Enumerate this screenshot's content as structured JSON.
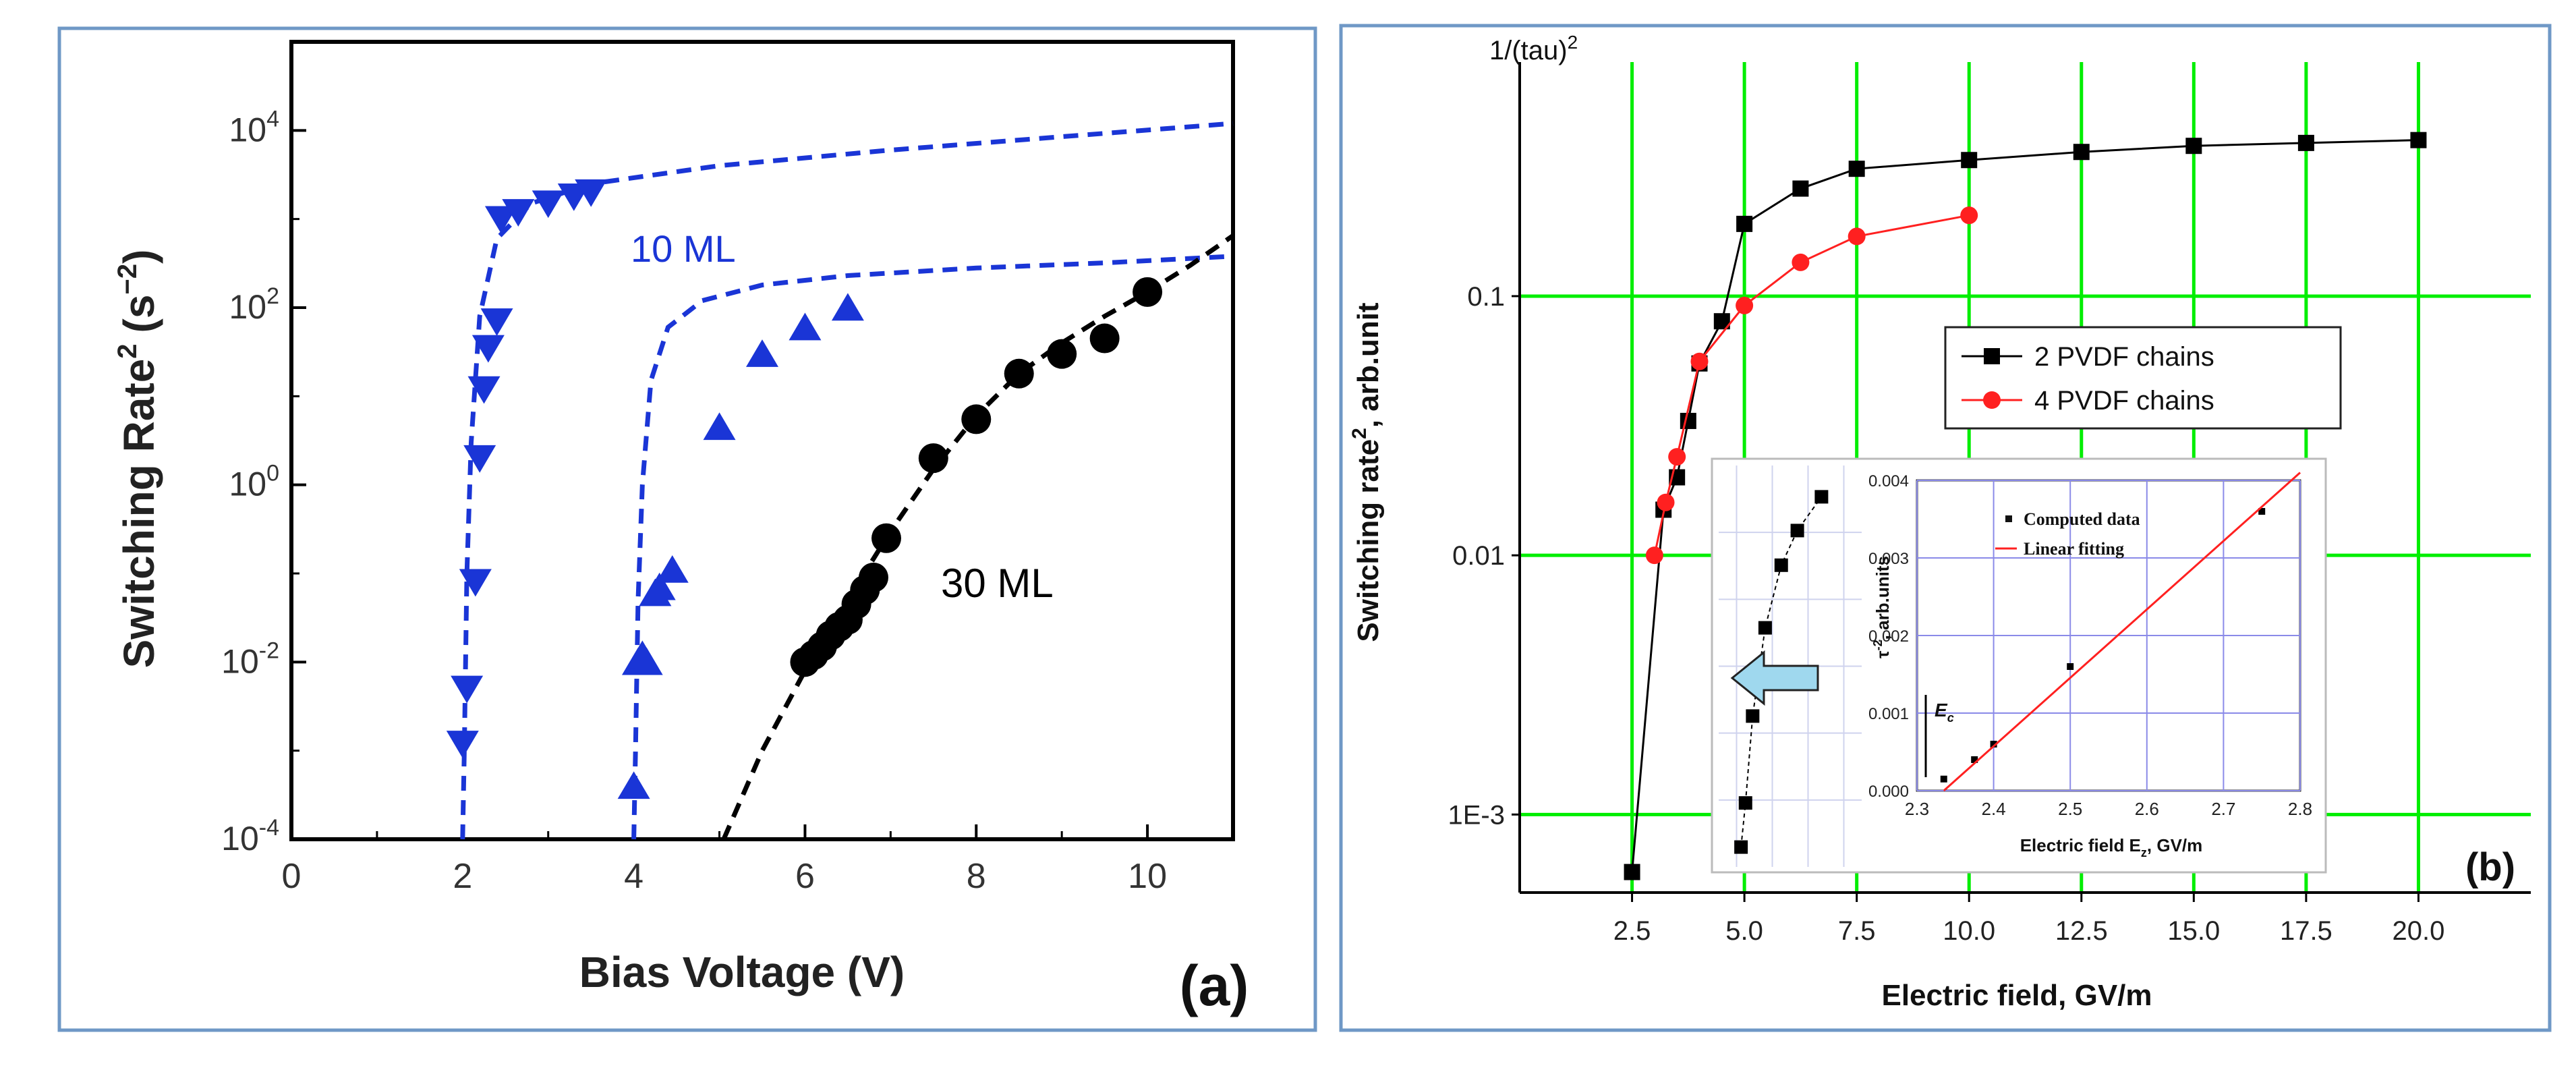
{
  "panel_a": {
    "label": "(a)",
    "ylabel_main": "Switching Rate",
    "ylabel_sup": "2",
    "ylabel_unit": "(s",
    "ylabel_unit_sup": "−2",
    "ylabel_close": ")",
    "curve_labels": {
      "ten_ml": "10 ML",
      "thirty_ml": "30 ML"
    },
    "colors": {
      "blue": "#1a35d6",
      "black": "#000000",
      "frame": "#6f98c6"
    }
  },
  "panel_b": {
    "label": "(b)",
    "ylabel_main": "Switching rate",
    "ylabel_sup": "2",
    "ylabel_unit": ", arb.unit",
    "top_label": "1/(tau)",
    "top_label_sup": "2",
    "colors": {
      "black": "#000000",
      "red": "#ff2020",
      "grid": "#00ee00",
      "arrow": "#9fd8ee",
      "inset_grid": "#8a8ae8"
    }
  },
  "inset": {
    "ylabel_prefix": "τ",
    "ylabel_sup": "-2",
    "ylabel_suffix": ", arb.units",
    "xlabel_prefix": "Electric field E",
    "xlabel_sub": "z",
    "xlabel_suffix": ", GV/m",
    "ec_label": "E",
    "ec_sub": "c",
    "legend": [
      "Computed data",
      "Linear fitting"
    ]
  },
  "chart_data": [
    {
      "type": "scatter",
      "title": "",
      "xlabel": "Bias Voltage (V)",
      "ylabel": "Switching Rate^2 (s^-2)",
      "xlim": [
        0,
        11
      ],
      "ylim": [
        0.0001,
        100000
      ],
      "yscale": "log",
      "xticks": [
        "0",
        "2",
        "4",
        "6",
        "8",
        "10"
      ],
      "ytick_exponents": [
        "-4",
        "-2",
        "0",
        "2",
        "4"
      ],
      "ytick_base": "10",
      "series": [
        {
          "name": "10 ML (down triangles)",
          "marker": "triangle-down",
          "color": "#1a35d6",
          "x": [
            2.0,
            2.05,
            2.15,
            2.2,
            2.25,
            2.3,
            2.4,
            2.45,
            2.65,
            3.0,
            3.3,
            3.5
          ],
          "y": [
            0.0012,
            0.005,
            0.08,
            2.0,
            12,
            35,
            70,
            1000,
            1200,
            1500,
            1800,
            2000
          ]
        },
        {
          "name": "up triangles",
          "marker": "triangle-up",
          "color": "#1a35d6",
          "x": [
            4.0,
            4.05,
            4.1,
            4.15,
            4.25,
            4.3,
            4.45,
            5.0,
            5.5,
            6.0,
            6.5
          ],
          "y": [
            0.0004,
            0.01,
            0.012,
            0.01,
            0.06,
            0.07,
            0.11,
            4.5,
            30,
            60,
            100
          ]
        },
        {
          "name": "30 ML (circles)",
          "marker": "circle",
          "color": "#000000",
          "x": [
            6.0,
            6.1,
            6.2,
            6.3,
            6.4,
            6.5,
            6.6,
            6.7,
            6.8,
            6.95,
            7.5,
            8.0,
            8.5,
            9.0,
            9.5,
            10.0
          ],
          "y": [
            0.01,
            0.012,
            0.015,
            0.02,
            0.025,
            0.03,
            0.045,
            0.065,
            0.09,
            0.25,
            2.0,
            5.5,
            18,
            30,
            45,
            150
          ]
        },
        {
          "name": "10 ML fit (dashed)",
          "style": "dashed",
          "color": "#1a35d6",
          "x": [
            2.0,
            2.02,
            2.05,
            2.1,
            2.2,
            2.4,
            2.8,
            3.5,
            5.0,
            7.0,
            9.0,
            11.0
          ],
          "y": [
            0.0001,
            0.001,
            0.1,
            3,
            80,
            600,
            1500,
            2500,
            4000,
            6000,
            8500,
            12000
          ]
        },
        {
          "name": "up triangle fit (dashed)",
          "style": "dashed",
          "color": "#1a35d6",
          "x": [
            4.0,
            4.02,
            4.05,
            4.1,
            4.2,
            4.4,
            4.8,
            5.5,
            6.5,
            8.0,
            9.5,
            11.0
          ],
          "y": [
            0.0001,
            0.001,
            0.05,
            1,
            15,
            60,
            120,
            180,
            230,
            280,
            320,
            380
          ]
        },
        {
          "name": "30 ML fit (dashed)",
          "style": "dashed",
          "color": "#000000",
          "x": [
            5.05,
            5.5,
            6.0,
            6.5,
            7.0,
            7.5,
            8.0,
            8.5,
            9.0,
            9.5,
            10.0,
            10.5,
            11.0
          ],
          "y": [
            0.0001,
            0.001,
            0.008,
            0.05,
            0.3,
            1.5,
            6,
            18,
            40,
            80,
            150,
            300,
            650
          ]
        }
      ]
    },
    {
      "type": "line",
      "title": "",
      "xlabel": "Electric field, GV/m",
      "ylabel": "Switching rate^2, arb.unit",
      "xlim": [
        0,
        22.5
      ],
      "ylim": [
        0.0005,
        0.8
      ],
      "yscale": "log",
      "xticks": [
        "2.5",
        "5.0",
        "7.5",
        "10.0",
        "12.5",
        "15.0",
        "17.5",
        "20.0"
      ],
      "yticks": [
        "1E-3",
        "0.01",
        "0.1"
      ],
      "legend": [
        "2 PVDF chains",
        "4 PVDF chains"
      ],
      "legend_position": "right-middle",
      "series": [
        {
          "name": "2 PVDF chains",
          "marker": "square",
          "color": "#000000",
          "x": [
            2.5,
            3.2,
            3.5,
            3.75,
            4.0,
            4.5,
            5.0,
            6.25,
            7.5,
            10.0,
            12.5,
            15.0,
            17.5,
            20.0
          ],
          "y": [
            0.0006,
            0.015,
            0.02,
            0.033,
            0.055,
            0.08,
            0.19,
            0.26,
            0.31,
            0.335,
            0.36,
            0.38,
            0.39,
            0.4
          ]
        },
        {
          "name": "4 PVDF chains",
          "marker": "circle",
          "color": "#ff2020",
          "x": [
            3.0,
            3.25,
            3.5,
            4.0,
            5.0,
            6.25,
            7.5,
            10.0
          ],
          "y": [
            0.01,
            0.016,
            0.024,
            0.056,
            0.092,
            0.135,
            0.17,
            0.205
          ]
        }
      ]
    },
    {
      "type": "scatter",
      "title": "",
      "xlabel": "Electric field E_z, GV/m",
      "ylabel": "tau^-2, arb.units",
      "xlim": [
        2.3,
        2.8
      ],
      "ylim": [
        0,
        0.004
      ],
      "xticks": [
        "2.3",
        "2.4",
        "2.5",
        "2.6",
        "2.7",
        "2.8"
      ],
      "yticks": [
        "0.000",
        "0.001",
        "0.002",
        "0.003",
        "0.004"
      ],
      "legend": [
        "Computed data",
        "Linear fitting"
      ],
      "legend_position": "top-left",
      "series": [
        {
          "name": "Computed data",
          "marker": "square",
          "color": "#000000",
          "x": [
            2.335,
            2.375,
            2.4,
            2.5,
            2.75
          ],
          "y": [
            0.00015,
            0.0004,
            0.0006,
            0.0016,
            0.0036
          ]
        },
        {
          "name": "Linear fitting",
          "style": "line",
          "color": "#ff2020",
          "x": [
            2.335,
            2.8
          ],
          "y": [
            0.0,
            0.0041
          ]
        }
      ]
    }
  ]
}
